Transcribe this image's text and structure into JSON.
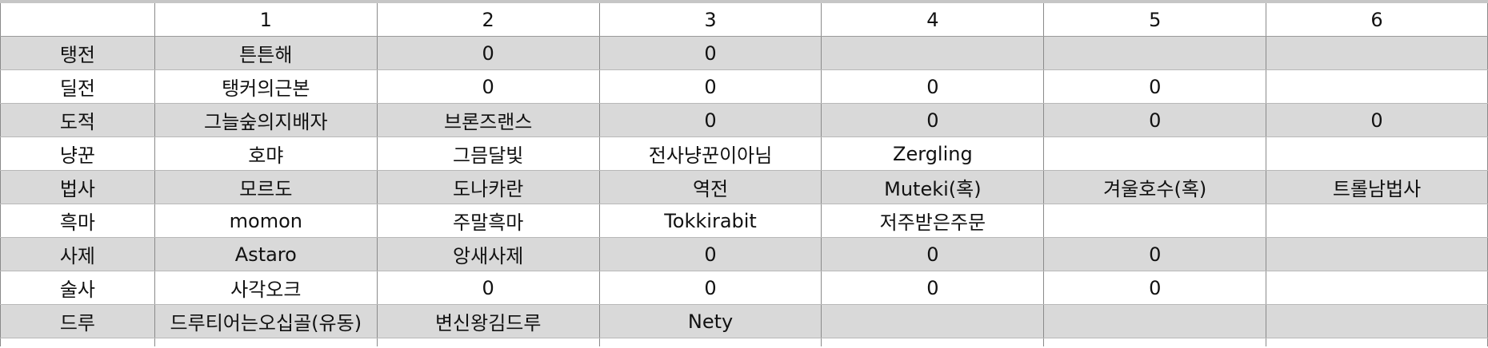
{
  "sheet": {
    "header": [
      "",
      "1",
      "2",
      "3",
      "4",
      "5",
      "6"
    ],
    "rows": [
      {
        "label": "탱전",
        "cells": [
          "튼튼해",
          "0",
          "0",
          "",
          "",
          ""
        ]
      },
      {
        "label": "딜전",
        "cells": [
          "탱커의근본",
          "0",
          "0",
          "0",
          "0",
          ""
        ]
      },
      {
        "label": "도적",
        "cells": [
          "그늘숲의지배자",
          "브론즈랜스",
          "0",
          "0",
          "0",
          "0"
        ]
      },
      {
        "label": "냥꾼",
        "cells": [
          "호먀",
          "그믐달빛",
          "전사냥꾼이아님",
          "Zergling",
          "",
          ""
        ]
      },
      {
        "label": "법사",
        "cells": [
          "모르도",
          "도나카란",
          "역전",
          "Muteki(혹)",
          "겨울호수(혹)",
          "트롤남법사"
        ]
      },
      {
        "label": "흑마",
        "cells": [
          "momon",
          "주말흑마",
          "Tokkirabit",
          "저주받은주문",
          "",
          ""
        ]
      },
      {
        "label": "사제",
        "cells": [
          "Astaro",
          "앙새사제",
          "0",
          "0",
          "0",
          ""
        ]
      },
      {
        "label": "술사",
        "cells": [
          "사각오크",
          "0",
          "0",
          "0",
          "0",
          ""
        ]
      },
      {
        "label": "드루",
        "cells": [
          "드루티어는오십골(유동)",
          "변신왕김드루",
          "Nety",
          "",
          "",
          ""
        ]
      }
    ],
    "shade_color": "#d9d9d9"
  }
}
